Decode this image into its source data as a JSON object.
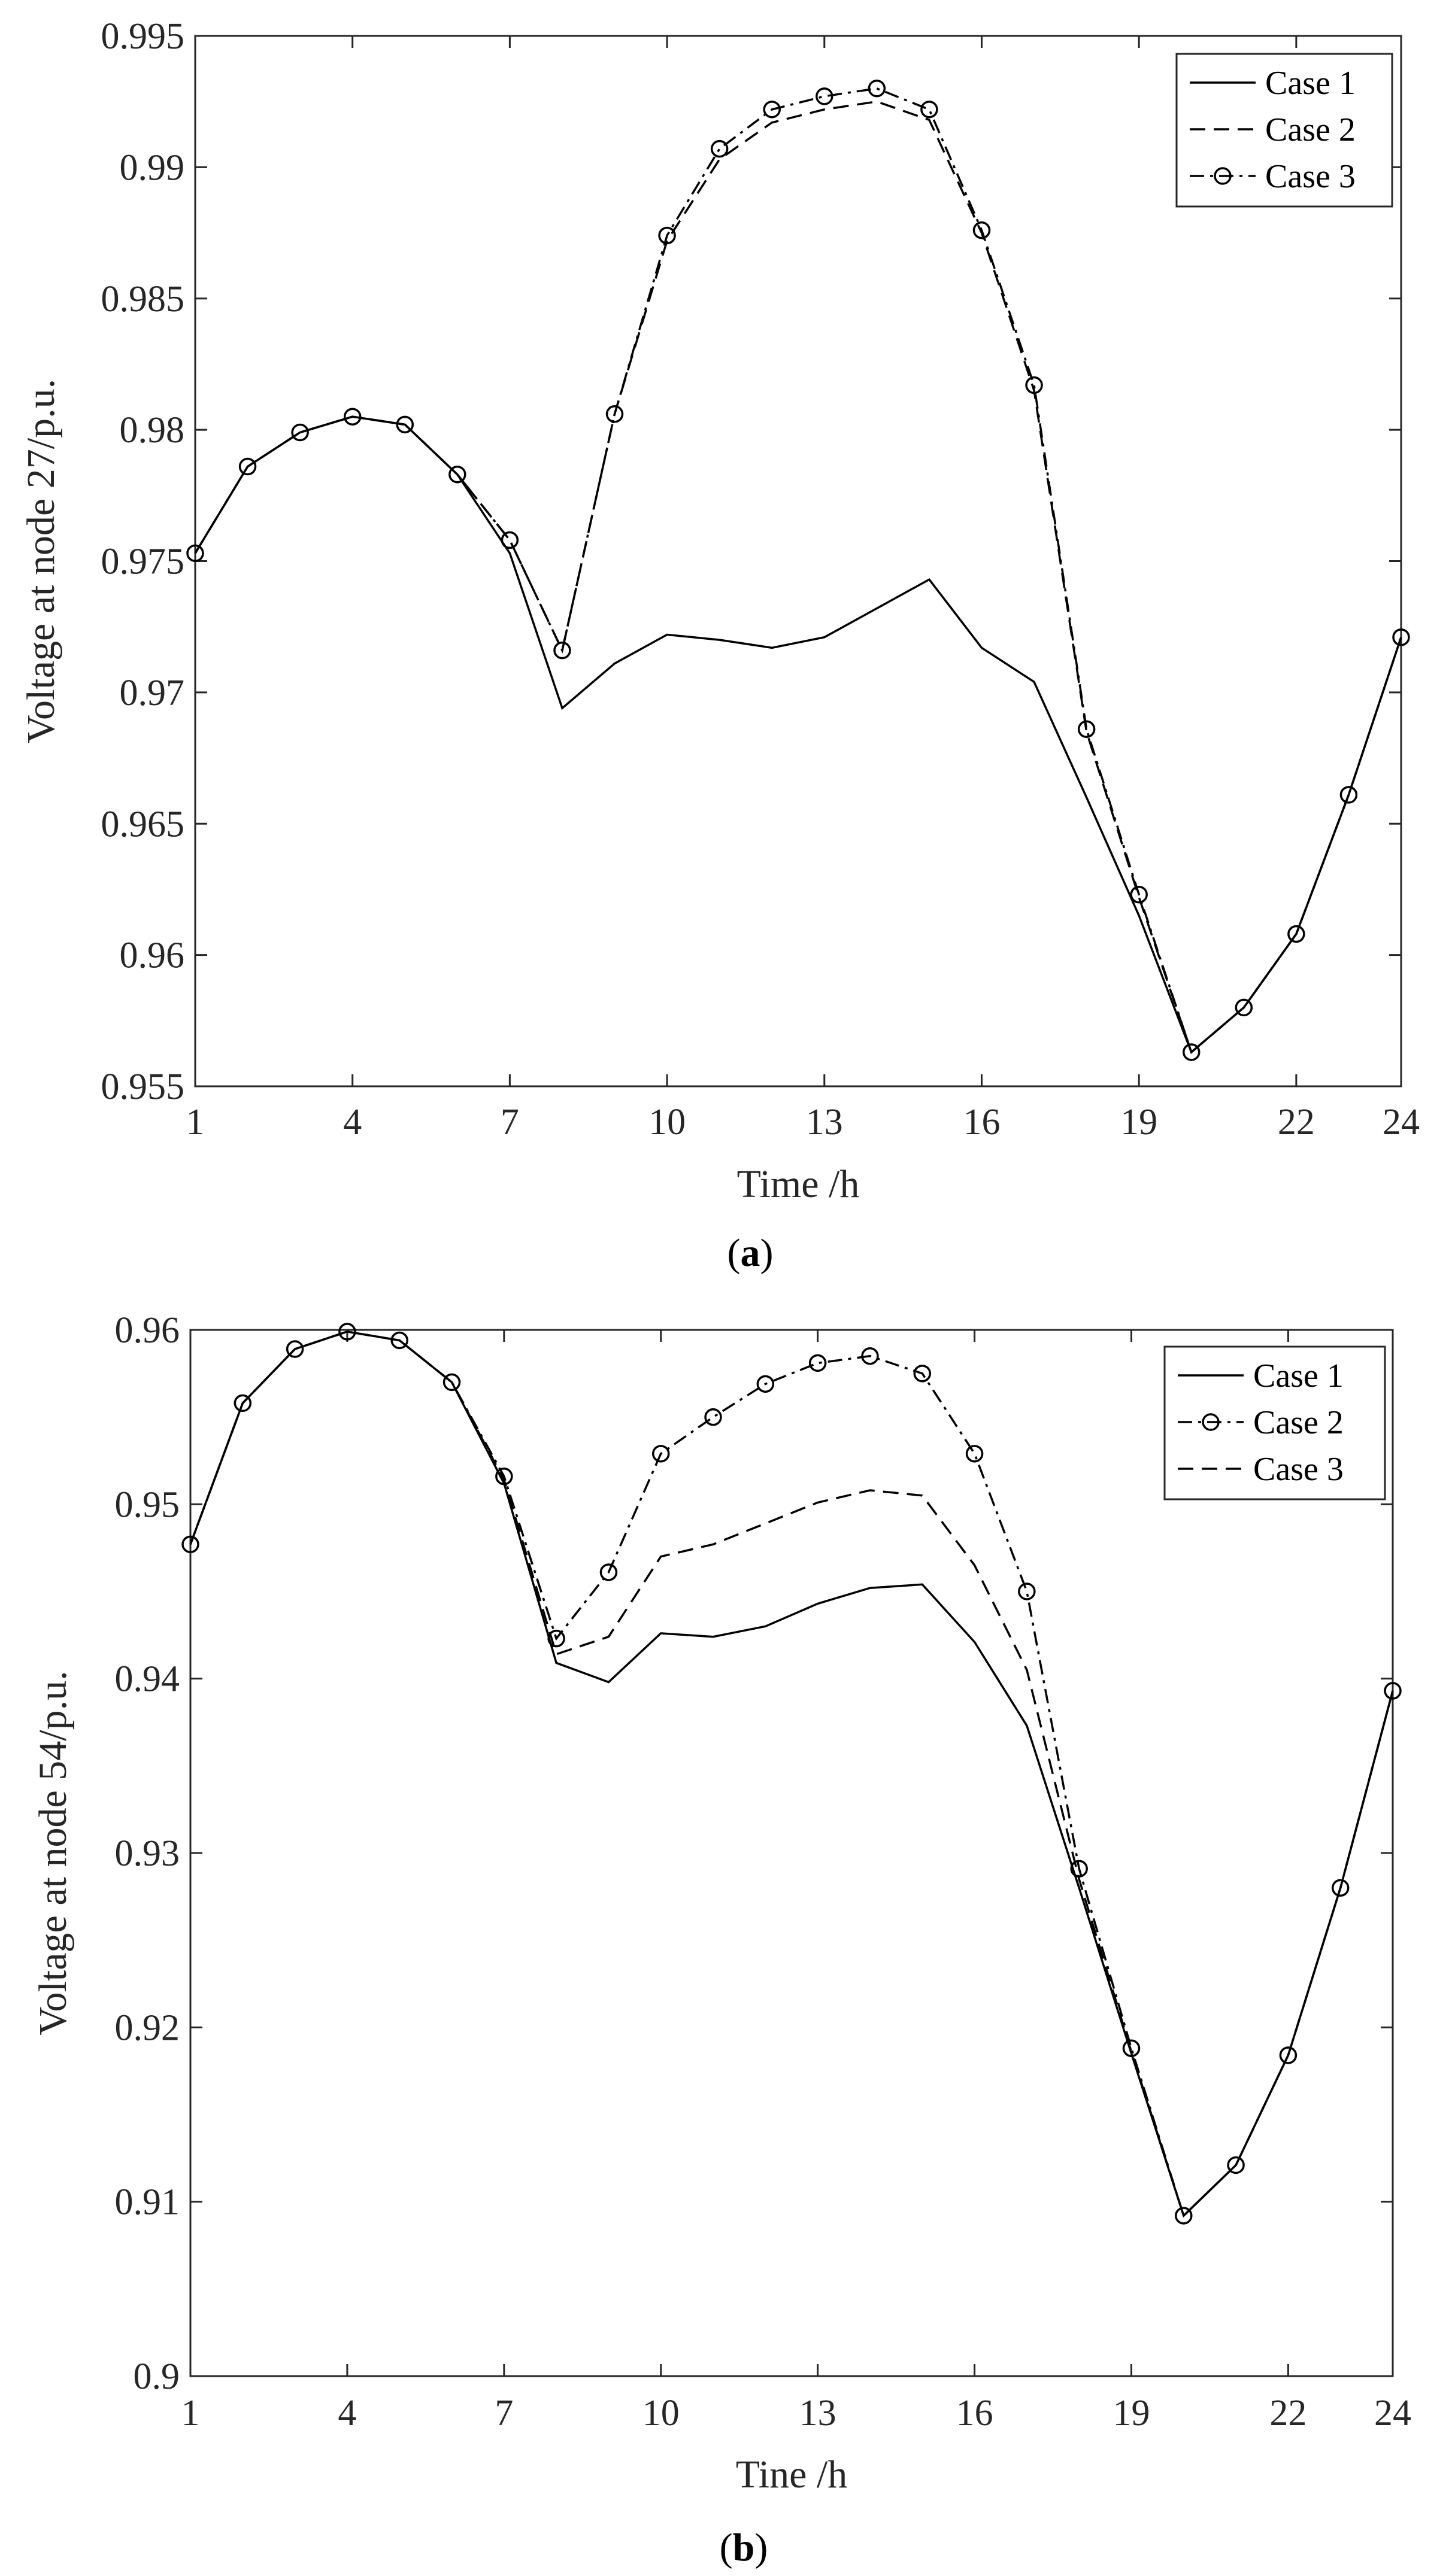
{
  "chart_data": [
    {
      "type": "line",
      "caption": "a",
      "title": "",
      "xlabel": "Time /h",
      "ylabel": "Voltage at node 27/p.u.",
      "xlim": [
        1,
        24
      ],
      "ylim": [
        0.955,
        0.995
      ],
      "xticks": [
        1,
        4,
        7,
        10,
        13,
        16,
        19,
        22,
        24
      ],
      "yticks": [
        0.955,
        0.96,
        0.965,
        0.97,
        0.975,
        0.98,
        0.985,
        0.99,
        0.995
      ],
      "ytick_labels": [
        "0.955",
        "0.96",
        "0.965",
        "0.97",
        "0.975",
        "0.98",
        "0.985",
        "0.99",
        "0.995"
      ],
      "legend_position": "top-right",
      "x": [
        1,
        2,
        3,
        4,
        5,
        6,
        7,
        8,
        9,
        10,
        11,
        12,
        13,
        14,
        15,
        16,
        17,
        18,
        19,
        20,
        21,
        22,
        23,
        24
      ],
      "series": [
        {
          "name": "Case 1",
          "style": "solid",
          "marker": "none",
          "values": [
            0.9753,
            0.9786,
            0.9799,
            0.9805,
            0.9802,
            0.9783,
            0.9753,
            0.9694,
            0.9711,
            0.9722,
            0.972,
            0.9717,
            0.9721,
            0.9732,
            0.9743,
            0.9717,
            0.9704,
            0.966,
            0.9615,
            0.9563,
            0.958,
            0.9608,
            0.9661,
            0.9721
          ]
        },
        {
          "name": "Case 2",
          "style": "dashed",
          "marker": "none",
          "values": [
            0.9753,
            0.9786,
            0.9799,
            0.9805,
            0.9802,
            0.9783,
            0.9758,
            0.9716,
            0.9806,
            0.9872,
            0.9903,
            0.9917,
            0.9922,
            0.9925,
            0.9918,
            0.9875,
            0.9815,
            0.9685,
            0.9622,
            0.9563,
            0.958,
            0.9608,
            0.9661,
            0.9721
          ]
        },
        {
          "name": "Case 3",
          "style": "dashdot",
          "marker": "circle",
          "values": [
            0.9753,
            0.9786,
            0.9799,
            0.9805,
            0.9802,
            0.9783,
            0.9758,
            0.9716,
            0.9806,
            0.9874,
            0.9907,
            0.9922,
            0.9927,
            0.993,
            0.9922,
            0.9876,
            0.9817,
            0.9686,
            0.9623,
            0.9563,
            0.958,
            0.9608,
            0.9661,
            0.9721
          ]
        }
      ]
    },
    {
      "type": "line",
      "caption": "b",
      "title": "",
      "xlabel": "Tine /h",
      "ylabel": "Voltage at node 54/p.u.",
      "xlim": [
        1,
        24
      ],
      "ylim": [
        0.9,
        0.96
      ],
      "xticks": [
        1,
        4,
        7,
        10,
        13,
        16,
        19,
        22,
        24
      ],
      "yticks": [
        0.9,
        0.91,
        0.92,
        0.93,
        0.94,
        0.95,
        0.96
      ],
      "ytick_labels": [
        "0.9",
        "0.91",
        "0.92",
        "0.93",
        "0.94",
        "0.95",
        "0.96"
      ],
      "legend_position": "top-right",
      "x": [
        1,
        2,
        3,
        4,
        5,
        6,
        7,
        8,
        9,
        10,
        11,
        12,
        13,
        14,
        15,
        16,
        17,
        18,
        19,
        20,
        21,
        22,
        23,
        24
      ],
      "series": [
        {
          "name": "Case 1",
          "style": "solid",
          "marker": "none",
          "values": [
            0.9477,
            0.9558,
            0.9589,
            0.9599,
            0.9594,
            0.957,
            0.9512,
            0.9409,
            0.9398,
            0.9426,
            0.9424,
            0.943,
            0.9443,
            0.9452,
            0.9454,
            0.9421,
            0.9373,
            0.928,
            0.9185,
            0.9092,
            0.9121,
            0.9184,
            0.928,
            0.9393
          ]
        },
        {
          "name": "Case 2",
          "style": "dashdot",
          "marker": "circle",
          "values": [
            0.9477,
            0.9558,
            0.9589,
            0.9599,
            0.9594,
            0.957,
            0.9516,
            0.9423,
            0.9461,
            0.9529,
            0.955,
            0.9569,
            0.9581,
            0.9585,
            0.9575,
            0.9529,
            0.945,
            0.9291,
            0.9188,
            0.9092,
            0.9121,
            0.9184,
            0.928,
            0.9393
          ]
        },
        {
          "name": "Case 3",
          "style": "dashed",
          "marker": "none",
          "values": [
            0.9477,
            0.9558,
            0.9589,
            0.9599,
            0.9594,
            0.957,
            0.9514,
            0.9414,
            0.9424,
            0.947,
            0.9477,
            0.9489,
            0.9501,
            0.9508,
            0.9505,
            0.9465,
            0.9405,
            0.9285,
            0.9186,
            0.9092,
            0.9121,
            0.9184,
            0.928,
            0.9393
          ]
        }
      ]
    }
  ]
}
